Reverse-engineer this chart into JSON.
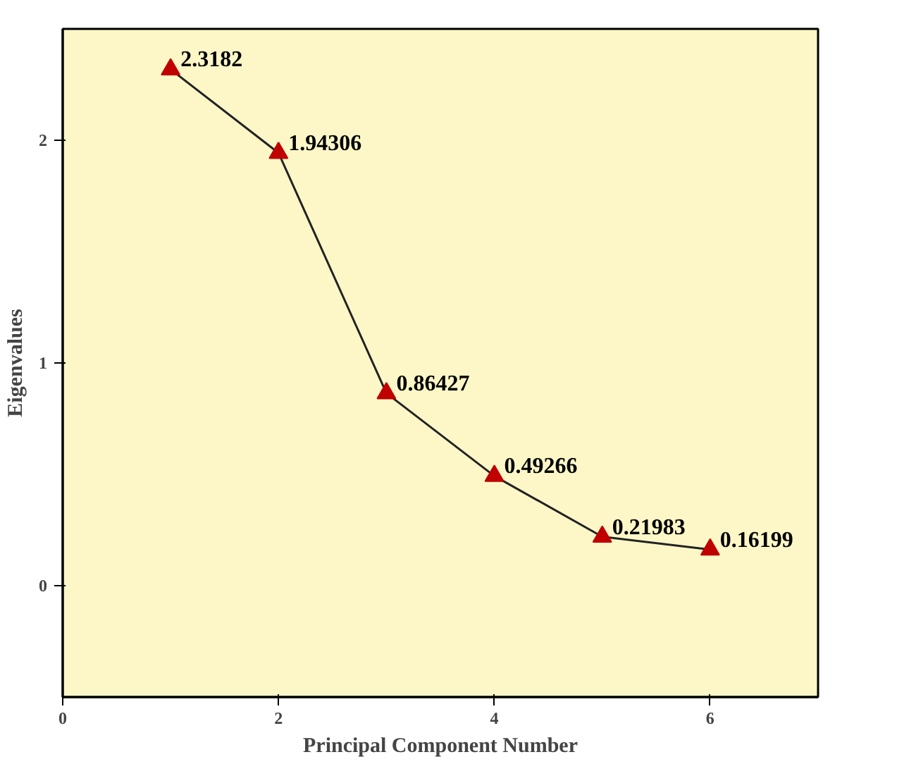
{
  "chart_data": {
    "type": "line",
    "xlabel": "Principal Component Number",
    "ylabel": "Eigenvalues",
    "x": [
      1,
      2,
      3,
      4,
      5,
      6
    ],
    "series": [
      {
        "color": "#c00000",
        "values": [
          2.3182,
          1.94306,
          0.86427,
          0.49266,
          0.21983,
          0.16199
        ]
      }
    ],
    "data_labels": true,
    "marker": "triangle",
    "line_style": "solid",
    "grid": false,
    "xlim": [
      0,
      7
    ],
    "ylim": [
      -0.5,
      2.5
    ],
    "xticks": [
      0,
      2,
      4,
      6
    ],
    "yticks": [
      0,
      1,
      2
    ]
  }
}
